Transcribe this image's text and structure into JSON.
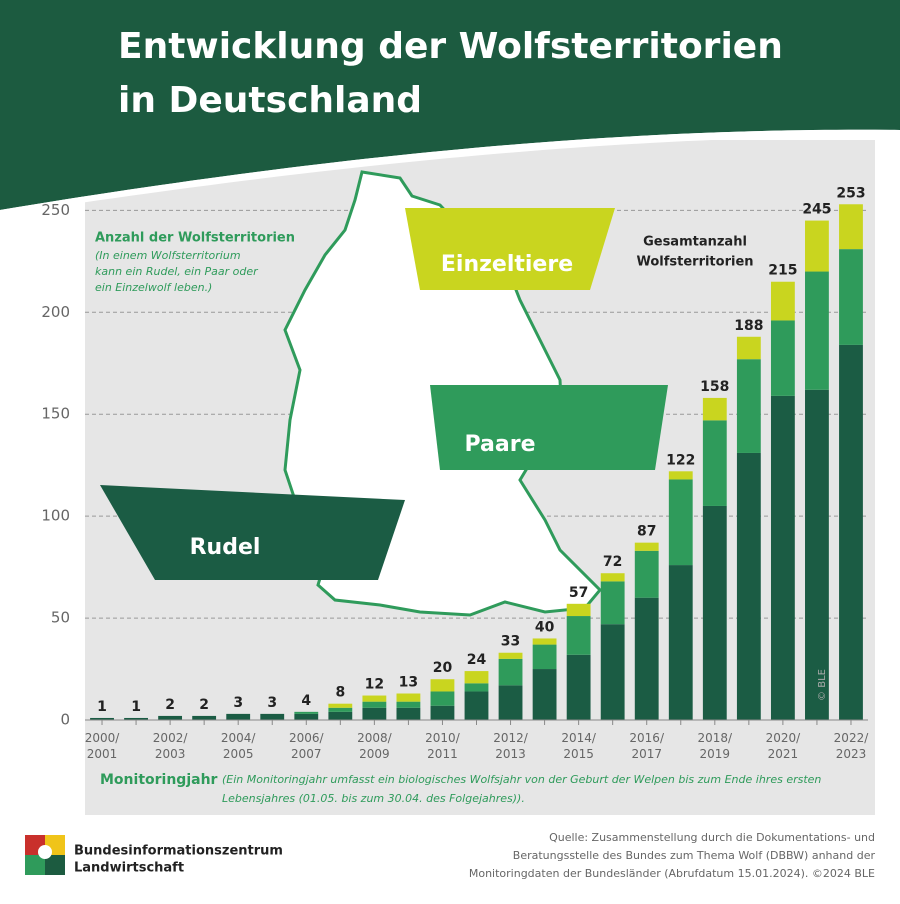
{
  "chart_data": {
    "type": "stacked_bar",
    "title": [
      "Entwicklung der Wolfsterritorien",
      "in Deutschland"
    ],
    "y_label": "Anzahl der Wolfsterritorien",
    "y_note": [
      "(In einem Wolfsterritorium",
      "kann ein Rudel, ein Paar oder",
      "ein Einzelwolf leben.)"
    ],
    "total_label": [
      "Gesamtanzahl",
      "Wolfsterritorien"
    ],
    "x_label": "Monitoringjahr",
    "x_note": [
      "(Ein Monitoringjahr umfasst ein biologisches Wolfsjahr von der Geburt der Welpen bis zum Ende ihres ersten",
      "Lebensjahres (01.05. bis zum 30.04. des Folgejahres))."
    ],
    "categories": [
      "2000/2001",
      null,
      "2002/2003",
      null,
      "2004/2005",
      null,
      "2006/2007",
      null,
      "2008/2009",
      null,
      "2010/2011",
      null,
      "2012/2013",
      null,
      "2014/2015",
      null,
      "2016/2017",
      null,
      "2018/2019",
      null,
      "2020/2021",
      null,
      "2022/2023"
    ],
    "series": [
      {
        "name": "Rudel",
        "color": "#1b5c44",
        "values": [
          1,
          1,
          2,
          2,
          3,
          3,
          3,
          4,
          6,
          6,
          7,
          14,
          17,
          25,
          32,
          47,
          60,
          76,
          105,
          131,
          159,
          162,
          184
        ]
      },
      {
        "name": "Paare",
        "color": "#2f9b5b",
        "values": [
          0,
          0,
          0,
          0,
          0,
          0,
          1,
          2,
          3,
          3,
          7,
          4,
          13,
          12,
          19,
          21,
          23,
          42,
          42,
          46,
          37,
          58,
          47
        ]
      },
      {
        "name": "Einzeltiere",
        "color": "#c9d51f",
        "values": [
          0,
          0,
          0,
          0,
          0,
          0,
          0,
          2,
          3,
          4,
          6,
          6,
          3,
          3,
          6,
          4,
          4,
          4,
          11,
          11,
          19,
          25,
          22
        ]
      }
    ],
    "totals": [
      1,
      1,
      2,
      2,
      3,
      3,
      4,
      8,
      12,
      13,
      20,
      24,
      33,
      40,
      57,
      72,
      87,
      122,
      158,
      188,
      215,
      245,
      253
    ],
    "ylim": [
      0,
      260
    ],
    "yticks": [
      0,
      50,
      100,
      150,
      200,
      250
    ],
    "grid": true,
    "copyright": "© BLE",
    "source": [
      "Quelle: Zusammenstellung durch die Dokumentations- und",
      "Beratungsstelle des Bundes zum Thema Wolf (DBBW) anhand der",
      "Monitoringdaten der Bundesländer (Abrufdatum 15.01.2024). ©2024 BLE"
    ],
    "publisher": [
      "Bundesinformationszentrum",
      "Landwirtschaft"
    ]
  }
}
